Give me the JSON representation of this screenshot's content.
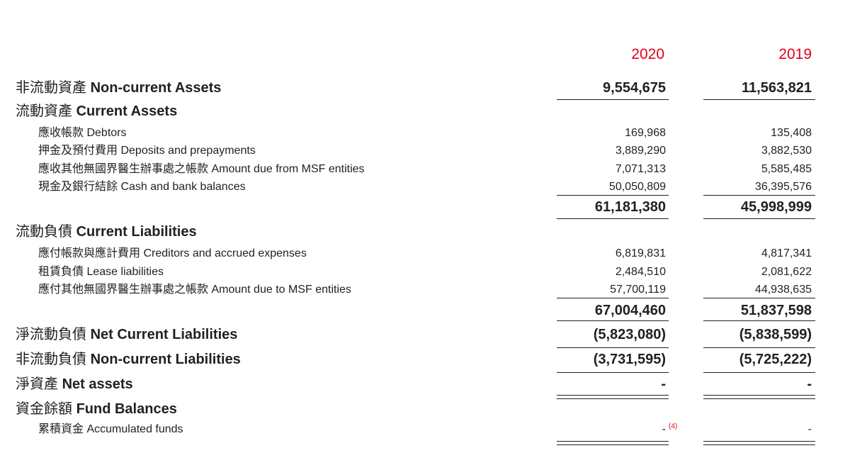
{
  "header": {
    "years": [
      "2020",
      "2019"
    ]
  },
  "rows": [
    {
      "label_zh": "非流動資產",
      "label_en": "Non-current Assets",
      "values": [
        "9,554,675",
        "11,563,821"
      ]
    },
    {
      "label_zh": "流動資產",
      "label_en": "Current Assets"
    },
    {
      "label_zh": "應收帳款",
      "label_en": "Debtors",
      "values": [
        "169,968",
        "135,408"
      ]
    },
    {
      "label_zh": "押金及預付費用",
      "label_en": "Deposits and prepayments",
      "values": [
        "3,889,290",
        "3,882,530"
      ]
    },
    {
      "label_zh": "應收其他無國界醫生辦事處之帳款",
      "label_en": "Amount due from MSF entities",
      "values": [
        "7,071,313",
        "5,585,485"
      ]
    },
    {
      "label_zh": "現金及銀行結餘",
      "label_en": "Cash and bank balances",
      "values": [
        "50,050,809",
        "36,395,576"
      ]
    },
    {
      "values": [
        "61,181,380",
        "45,998,999"
      ]
    },
    {
      "label_zh": "流動負債",
      "label_en": "Current Liabilities"
    },
    {
      "label_zh": "應付帳款與應計費用",
      "label_en": "Creditors and accrued expenses",
      "values": [
        "6,819,831",
        "4,817,341"
      ]
    },
    {
      "label_zh": "租賃負債",
      "label_en": "Lease liabilities",
      "values": [
        "2,484,510",
        "2,081,622"
      ]
    },
    {
      "label_zh": "應付其他無國界醫生辦事處之帳款",
      "label_en": "Amount due to MSF entities",
      "values": [
        "57,700,119",
        "44,938,635"
      ]
    },
    {
      "values": [
        "67,004,460",
        "51,837,598"
      ]
    },
    {
      "label_zh": "淨流動負債",
      "label_en": "Net Current Liabilities",
      "values": [
        "(5,823,080)",
        "(5,838,599)"
      ]
    },
    {
      "label_zh": "非流動負債",
      "label_en": "Non-current Liabilities",
      "values": [
        "(3,731,595)",
        "(5,725,222)"
      ]
    },
    {
      "label_zh": "淨資產",
      "label_en": "Net assets",
      "values": [
        "-",
        "-"
      ]
    },
    {
      "label_zh": "資金餘額",
      "label_en": "Fund Balances"
    },
    {
      "label_zh": "累積資金",
      "label_en": "Accumulated funds",
      "values": [
        "-",
        "-"
      ],
      "footnote": "(4)"
    }
  ]
}
